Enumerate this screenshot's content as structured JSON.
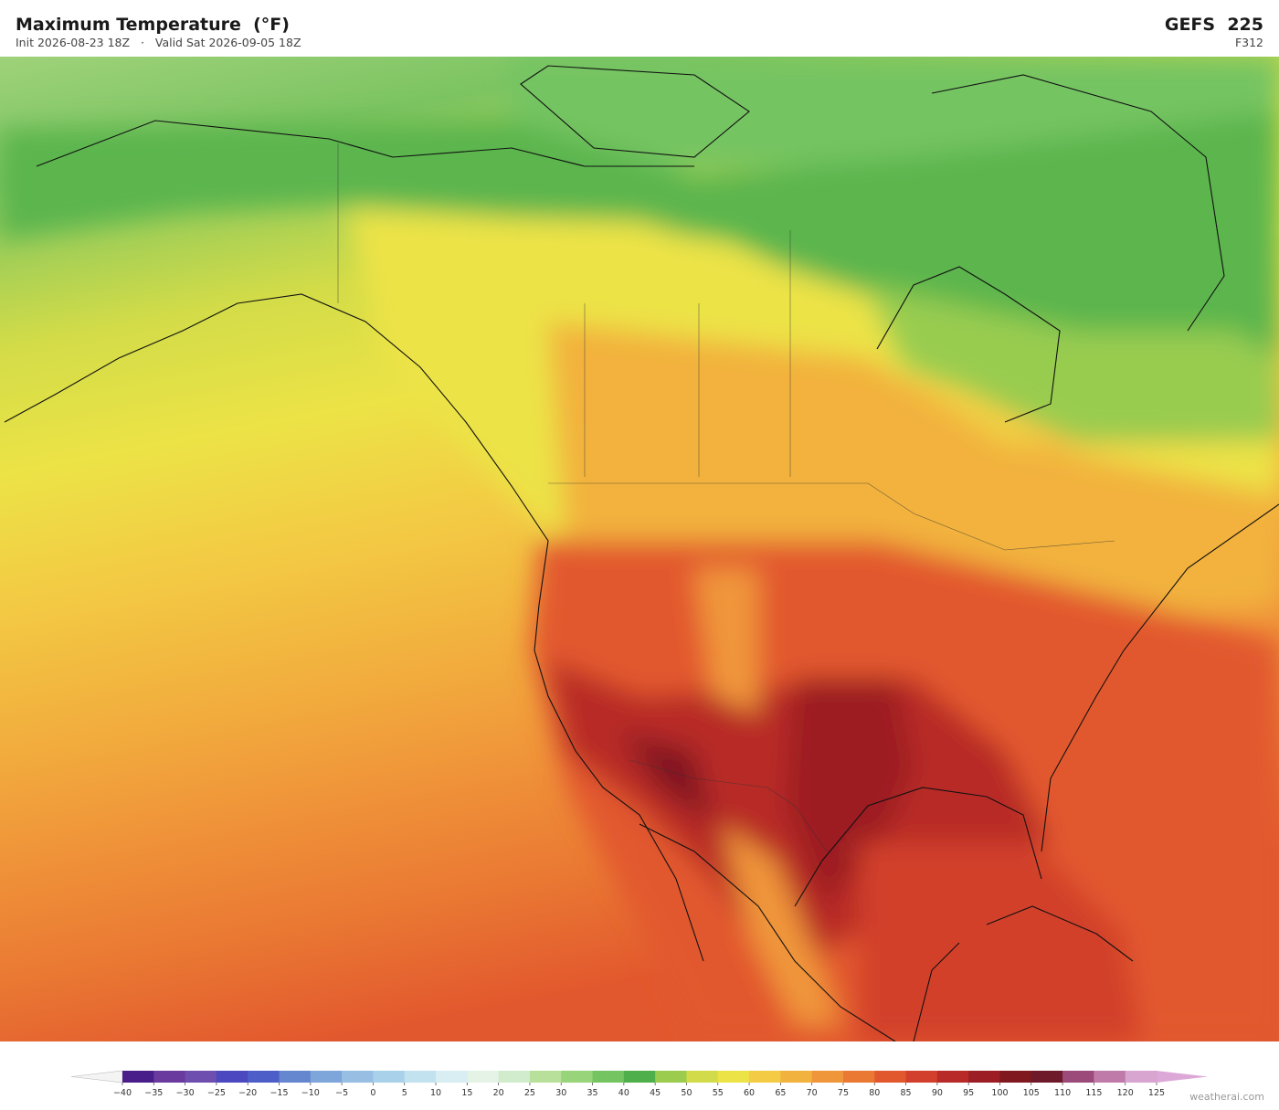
{
  "header": {
    "title": "Maximum Temperature  (°F)",
    "init": "Init 2026-08-23 18Z",
    "separator": "·",
    "valid": "Valid Sat 2026-09-05 18Z",
    "model": "GEFS  225",
    "forecast_hour": "F312"
  },
  "colorbar": {
    "ticks": [
      {
        "value": -40,
        "label": "−40"
      },
      {
        "value": -35,
        "label": "−35"
      },
      {
        "value": -30,
        "label": "−30"
      },
      {
        "value": -25,
        "label": "−25"
      },
      {
        "value": -20,
        "label": "−20"
      },
      {
        "value": -15,
        "label": "−15"
      },
      {
        "value": -10,
        "label": "−10"
      },
      {
        "value": -5,
        "label": "−5"
      },
      0,
      5,
      10,
      15,
      20,
      25,
      30,
      35,
      40,
      45,
      50,
      55,
      60,
      65,
      70,
      75,
      80,
      85,
      90,
      95,
      100,
      105,
      110,
      115,
      120,
      125
    ],
    "colors": [
      "#4a1e8a",
      "#6a3a9e",
      "#6e4fb0",
      "#4b48c0",
      "#4e5ec8",
      "#6487cf",
      "#7ea6da",
      "#98bfe3",
      "#a9d2ea",
      "#c3e2ef",
      "#d8eef2",
      "#e5f3e6",
      "#d0eccc",
      "#b8e09a",
      "#98d47a",
      "#74c462",
      "#4fb04b",
      "#9ccc4e",
      "#d2dc4a",
      "#ece346",
      "#f3cb44",
      "#f2b23e",
      "#f0963a",
      "#ea7a33",
      "#e2582e",
      "#d23f2c",
      "#b82a28",
      "#9c1d24",
      "#801820",
      "#6e1a2a",
      "#9c4a7a",
      "#c07aaa",
      "#d8a4d0"
    ],
    "under_color": "#f4f4f4",
    "over_color": "#dca8d8"
  },
  "watermark": "weatherai.com"
}
